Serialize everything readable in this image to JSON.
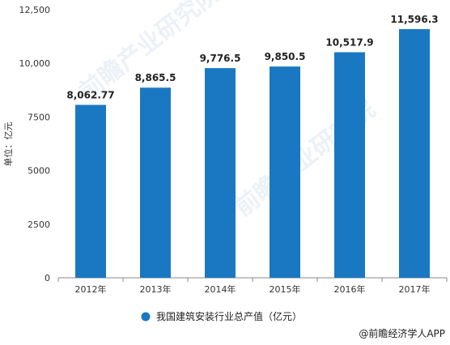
{
  "chart_data": {
    "type": "bar",
    "categories": [
      "2012年",
      "2013年",
      "2014年",
      "2015年",
      "2016年",
      "2017年"
    ],
    "values": [
      8062.77,
      8865.5,
      9776.5,
      9850.5,
      10517.9,
      11596.3
    ],
    "value_labels": [
      "8,062.77",
      "8,865.5",
      "9,776.5",
      "9,850.5",
      "10,517.9",
      "11,596.3"
    ],
    "ylabel": "单位：亿元",
    "ylim": [
      0,
      12500
    ],
    "yticks": [
      0,
      2500,
      5000,
      7500,
      10000,
      12500
    ],
    "ytick_labels": [
      "0",
      "2500",
      "5000",
      "7500",
      "10,000",
      "12,500"
    ],
    "series_name": "我国建筑安装行业总产值（亿元）",
    "legend_position": "bottom-center",
    "grid": false,
    "bar_color": "#1a78c2"
  },
  "watermark": "前瞻产业研究院",
  "source": "@前瞻经济学人APP"
}
